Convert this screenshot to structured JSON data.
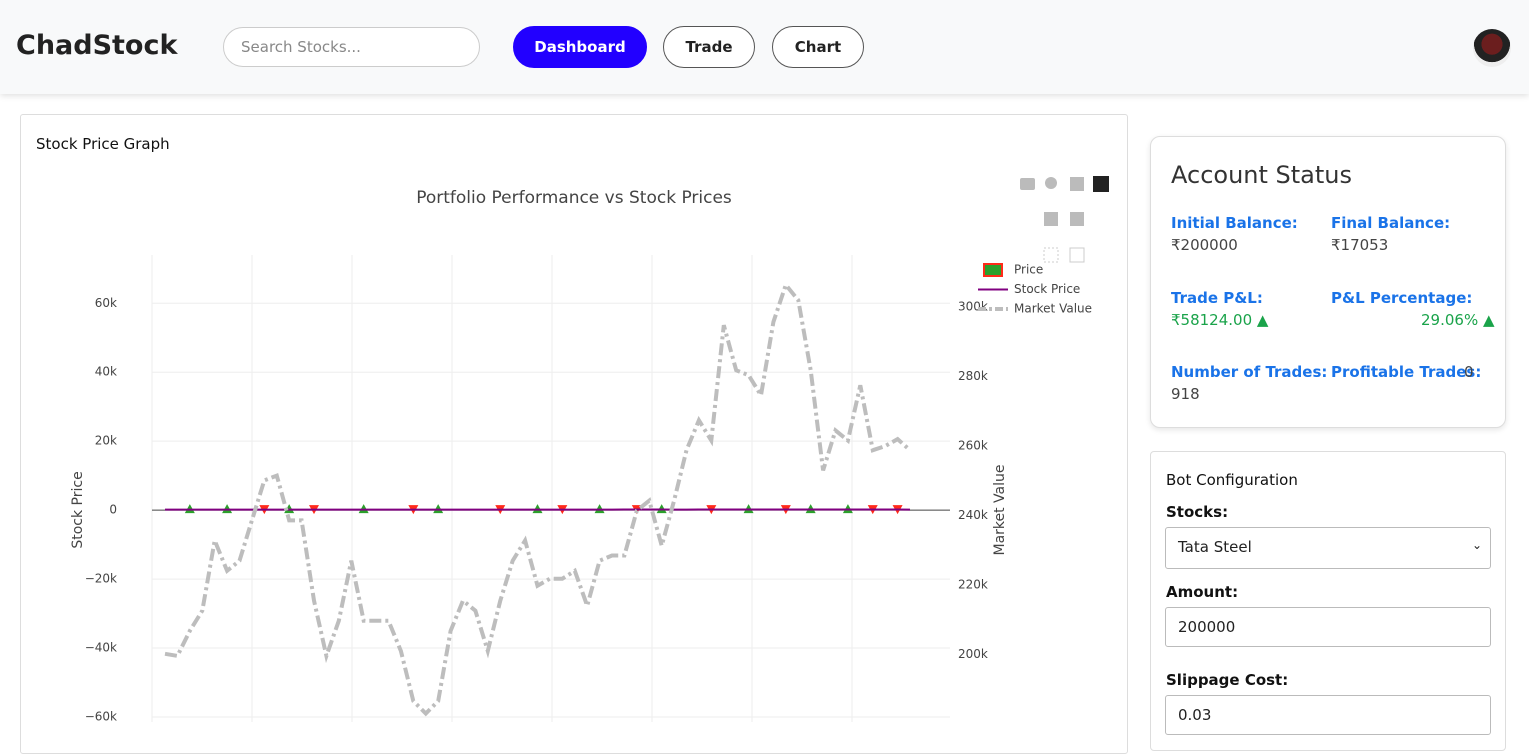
{
  "header": {
    "brand": "ChadStock",
    "search_placeholder": "Search Stocks...",
    "nav": [
      "Dashboard",
      "Trade",
      "Chart"
    ]
  },
  "graph_card": {
    "title": "Stock Price Graph"
  },
  "chart_data": {
    "type": "line",
    "title": "Portfolio Performance vs Stock Prices",
    "y_label": "Stock Price",
    "y2_label": "Market Value",
    "ylim": [
      -60000,
      74000
    ],
    "yticks": [
      {
        "value": -60000,
        "label": "−60k"
      },
      {
        "value": -40000,
        "label": "−40k"
      },
      {
        "value": -20000,
        "label": "−20k"
      },
      0,
      {
        "value": 20000,
        "label": "20k"
      },
      {
        "value": 40000,
        "label": "40k"
      },
      {
        "value": 60000,
        "label": "60k"
      }
    ],
    "y2lim": [
      182000,
      315000
    ],
    "y2ticks": [
      {
        "value": 200000,
        "label": "200k"
      },
      {
        "value": 220000,
        "label": "220k"
      },
      {
        "value": 240000,
        "label": "240k"
      },
      {
        "value": 260000,
        "label": "260k"
      },
      {
        "value": 280000,
        "label": "280k"
      },
      {
        "value": 300000,
        "label": "300k"
      }
    ],
    "grid": true,
    "series": [
      {
        "name": "Price",
        "color": "#2ca02c",
        "sell_color": "#ff2a1a",
        "values": [
          null,
          null,
          300,
          null,
          null,
          300,
          null,
          null,
          300,
          null,
          300,
          null,
          300,
          null,
          null,
          null,
          300,
          null,
          null,
          null,
          300,
          null,
          300,
          null,
          null,
          null,
          null,
          300,
          null,
          null,
          300,
          null,
          300,
          null,
          null,
          300,
          null,
          null,
          300,
          null,
          300,
          null,
          null,
          null,
          300,
          null,
          null,
          300,
          null,
          null,
          300,
          null,
          300,
          null,
          null,
          300,
          null,
          300,
          null,
          300,
          null
        ],
        "symbols": [
          null,
          null,
          "up",
          null,
          null,
          "up",
          null,
          null,
          "down",
          null,
          "up",
          null,
          "down",
          null,
          null,
          null,
          "up",
          null,
          null,
          null,
          "down",
          null,
          "up",
          null,
          null,
          null,
          null,
          "down",
          null,
          null,
          "up",
          null,
          "down",
          null,
          null,
          "up",
          null,
          null,
          "down",
          null,
          "up",
          null,
          null,
          null,
          "down",
          null,
          null,
          "up",
          null,
          null,
          "down",
          null,
          "up",
          null,
          null,
          "up",
          null,
          "down",
          null,
          "down",
          null
        ]
      },
      {
        "name": "Stock Price",
        "color": "#800080",
        "values": [
          150,
          152,
          155,
          158,
          160,
          158,
          162,
          165,
          163,
          160,
          158,
          157,
          156,
          160,
          162,
          158,
          155,
          153,
          152,
          154,
          156,
          158,
          160,
          162,
          161,
          160,
          159,
          158,
          160,
          162,
          163,
          165,
          166,
          164,
          163,
          165,
          168,
          170,
          172,
          171,
          170,
          169,
          168,
          170,
          172,
          174,
          175,
          176,
          175,
          174,
          176,
          178,
          177,
          176,
          175,
          174,
          173,
          172,
          171,
          170,
          169
        ]
      },
      {
        "name": "Market Value",
        "color": "#bdbdbd",
        "axis": "y2",
        "values": [
          200200,
          199600,
          206800,
          212600,
          232800,
          224100,
          227000,
          238600,
          250100,
          251500,
          238600,
          238600,
          215500,
          199600,
          209700,
          227000,
          209700,
          209700,
          209700,
          201000,
          186600,
          183000,
          186600,
          206800,
          215500,
          212600,
          201000,
          215500,
          227000,
          232800,
          219800,
          221800,
          221800,
          224100,
          214000,
          227000,
          228500,
          228500,
          241400,
          244300,
          231300,
          244300,
          258800,
          267400,
          261600,
          294800,
          281800,
          280400,
          274600,
          295700,
          306400,
          302000,
          281800,
          253000,
          264500,
          261600,
          277500,
          258800,
          260000,
          262000,
          258800
        ]
      }
    ]
  },
  "account_status": {
    "title": "Account Status",
    "items": [
      {
        "label": "Initial Balance:",
        "value": "₹200000"
      },
      {
        "label": "Final Balance:",
        "value": "₹17053"
      },
      {
        "label": "Trade P&L:",
        "value": "₹58124.00 ▲"
      },
      {
        "label": "P&L Percentage:",
        "value": "29.06% ▲"
      },
      {
        "label": "Number of Trades:",
        "value": "918"
      },
      {
        "label": "Profitable Trades:",
        "value": "0"
      }
    ]
  },
  "bot_config": {
    "title": "Bot Configuration",
    "stocks_label": "Stocks:",
    "stock": "Tata Steel",
    "amount_label": "Amount:",
    "amount": "200000",
    "slippage_label": "Slippage Cost:",
    "slippage": "0.03"
  }
}
